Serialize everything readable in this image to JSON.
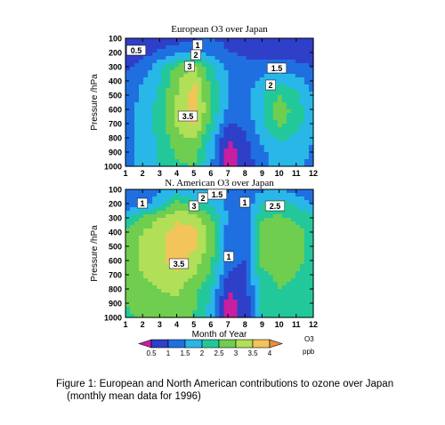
{
  "chart_data": {
    "type": "heatmap",
    "panels": [
      {
        "title": "European O3 over Japan",
        "ylabel": "Pressure /hPa",
        "xlabel": "",
        "x_ticks": [
          1,
          2,
          3,
          4,
          5,
          6,
          7,
          8,
          9,
          10,
          11,
          12
        ],
        "y_ticks": [
          100,
          200,
          300,
          400,
          500,
          600,
          700,
          800,
          900,
          1000
        ],
        "contour_labels": [
          "0.5",
          "1",
          "2",
          "3",
          "1.5",
          "2",
          "3.5"
        ],
        "z_grid": [
          [
            0.5,
            0.5,
            0.6,
            0.7,
            0.9,
            1.0,
            0.9,
            0.7,
            0.6,
            0.7,
            0.6,
            0.5
          ],
          [
            0.6,
            0.8,
            1.1,
            1.4,
            1.6,
            1.3,
            1.0,
            0.9,
            0.8,
            0.8,
            0.7,
            0.5
          ],
          [
            0.9,
            1.2,
            1.8,
            2.6,
            3.0,
            2.1,
            1.4,
            1.2,
            1.2,
            1.3,
            1.2,
            1.0
          ],
          [
            1.1,
            1.5,
            2.0,
            2.9,
            3.5,
            2.3,
            1.5,
            1.3,
            1.6,
            1.9,
            1.7,
            1.3
          ],
          [
            1.2,
            1.6,
            2.1,
            3.0,
            3.7,
            2.4,
            1.5,
            1.3,
            1.9,
            2.5,
            2.1,
            1.5
          ],
          [
            1.3,
            1.7,
            2.2,
            3.1,
            3.8,
            2.5,
            1.4,
            1.2,
            2.0,
            2.8,
            2.3,
            1.6
          ],
          [
            1.3,
            1.7,
            2.2,
            3.1,
            3.6,
            2.3,
            1.0,
            1.1,
            1.9,
            2.6,
            2.2,
            1.6
          ],
          [
            1.3,
            1.7,
            2.1,
            2.8,
            3.1,
            1.9,
            0.5,
            0.9,
            1.6,
            2.1,
            1.9,
            1.5
          ],
          [
            1.3,
            1.7,
            2.1,
            2.6,
            2.7,
            1.7,
            0.3,
            0.7,
            1.4,
            1.8,
            1.7,
            1.4
          ],
          [
            1.3,
            1.6,
            2.0,
            2.4,
            2.5,
            1.6,
            0.3,
            0.7,
            1.3,
            1.7,
            1.6,
            1.4
          ]
        ]
      },
      {
        "title": "N. American O3 over Japan",
        "ylabel": "Pressure /hPa",
        "xlabel": "Month of Year",
        "x_ticks": [
          1,
          2,
          3,
          4,
          5,
          6,
          7,
          8,
          9,
          10,
          11,
          12
        ],
        "y_ticks": [
          100,
          200,
          300,
          400,
          500,
          600,
          700,
          800,
          900,
          1000
        ],
        "contour_labels": [
          "1.5",
          "1",
          "3",
          "2",
          "1",
          "2.5",
          "3.5",
          "1"
        ],
        "z_grid": [
          [
            1.0,
            1.2,
            1.4,
            1.6,
            1.7,
            1.6,
            1.5,
            1.3,
            1.4,
            1.5,
            1.3,
            1.0
          ],
          [
            1.0,
            1.3,
            1.8,
            2.7,
            2.2,
            1.9,
            1.4,
            1.1,
            2.0,
            2.2,
            1.9,
            1.5
          ],
          [
            2.0,
            2.6,
            3.0,
            3.4,
            3.3,
            2.6,
            1.4,
            1.1,
            2.5,
            2.6,
            2.4,
            2.1
          ],
          [
            2.6,
            3.0,
            3.3,
            3.7,
            3.6,
            2.8,
            1.3,
            1.0,
            2.6,
            2.8,
            2.6,
            2.4
          ],
          [
            2.7,
            3.1,
            3.4,
            3.8,
            3.6,
            2.8,
            1.2,
            1.0,
            2.6,
            2.8,
            2.6,
            2.4
          ],
          [
            2.7,
            3.1,
            3.4,
            3.7,
            3.3,
            2.6,
            1.1,
            1.0,
            2.6,
            2.8,
            2.6,
            2.4
          ],
          [
            2.6,
            3.0,
            3.2,
            3.4,
            3.0,
            2.4,
            1.0,
            0.9,
            2.4,
            2.6,
            2.5,
            2.3
          ],
          [
            2.5,
            2.8,
            3.0,
            3.1,
            2.7,
            2.1,
            0.5,
            0.8,
            2.2,
            2.5,
            2.4,
            2.2
          ],
          [
            2.5,
            2.7,
            2.9,
            2.9,
            2.6,
            1.9,
            0.3,
            0.6,
            2.1,
            2.4,
            2.3,
            2.1
          ],
          [
            2.4,
            2.6,
            2.8,
            2.8,
            2.5,
            1.8,
            0.3,
            0.6,
            2.0,
            2.3,
            2.2,
            2.1
          ]
        ]
      }
    ],
    "colorbar": {
      "label": "O3",
      "unit": "ppb",
      "ticks": [
        "0.5",
        "1",
        "1.5",
        "2",
        "2.5",
        "3",
        "3.5",
        "4"
      ],
      "levels": [
        0.5,
        1.0,
        1.5,
        2.0,
        2.5,
        3.0,
        3.5,
        4.0
      ],
      "colors": [
        "#c81ea0",
        "#2e3fc8",
        "#1f6fe0",
        "#29b7e8",
        "#23c89a",
        "#6fce4f",
        "#b2df58",
        "#f2c45a",
        "#e98c45"
      ]
    }
  },
  "caption": {
    "line1": "Figure 1: European and North American contributions to ozone over Japan",
    "line2": "(monthly mean data for 1996)"
  }
}
